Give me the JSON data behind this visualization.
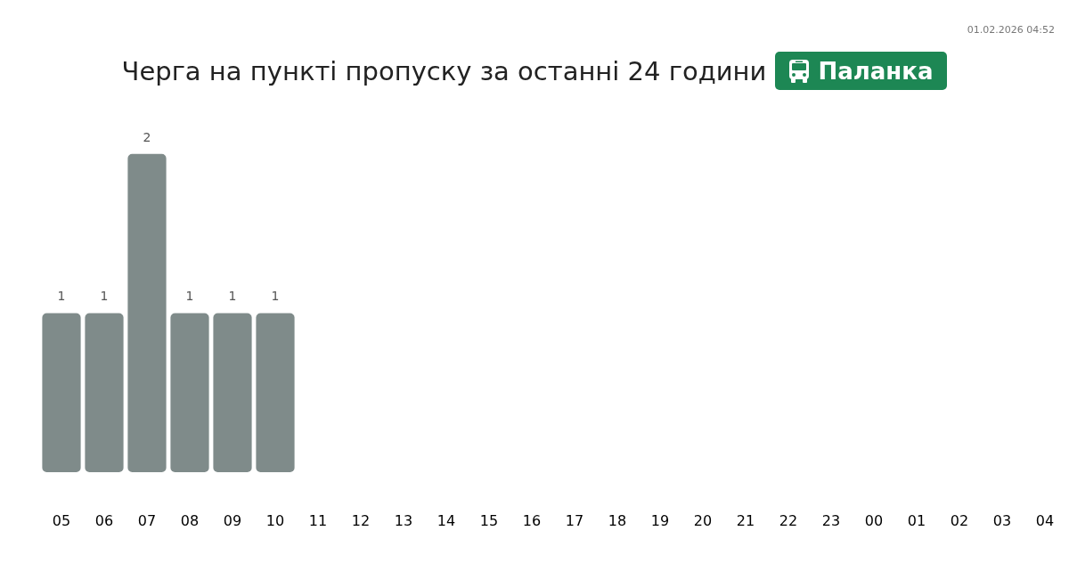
{
  "chart_data": {
    "type": "bar",
    "title": "Черга на пункті пропуску за останні 24 години",
    "subtitle": "Паланка",
    "annotations": [
      "01.02.2026 04:52"
    ],
    "categories": [
      "05",
      "06",
      "07",
      "08",
      "09",
      "10",
      "11",
      "12",
      "13",
      "14",
      "15",
      "16",
      "17",
      "18",
      "19",
      "20",
      "21",
      "22",
      "23",
      "00",
      "01",
      "02",
      "03",
      "04"
    ],
    "values": [
      1,
      1,
      2,
      1,
      1,
      1,
      null,
      null,
      null,
      null,
      null,
      null,
      null,
      null,
      null,
      null,
      null,
      null,
      null,
      null,
      null,
      null,
      null,
      null
    ],
    "color": "#7f8b8a",
    "data_labels": true
  }
}
